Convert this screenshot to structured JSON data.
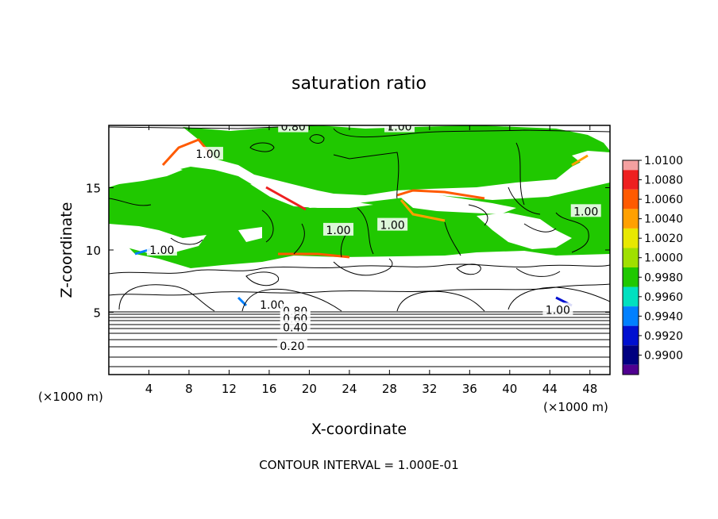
{
  "chart_data": {
    "type": "heatmap",
    "title": "saturation ratio",
    "xlabel": "X-coordinate",
    "ylabel": "Z-coordinate",
    "x_unit_left": "(×1000 m)",
    "x_unit_right": "(×1000 m)",
    "xlim": [
      0,
      50
    ],
    "ylim": [
      0,
      20
    ],
    "x_ticks": [
      4,
      8,
      12,
      16,
      20,
      24,
      28,
      32,
      36,
      40,
      44,
      48
    ],
    "y_ticks": [
      5,
      10,
      15
    ],
    "footer": "CONTOUR INTERVAL = 1.000E-01",
    "colorbar": {
      "levels": [
        "1.0100",
        "1.0080",
        "1.0060",
        "1.0040",
        "1.0020",
        "1.0000",
        "0.9980",
        "0.9960",
        "0.9940",
        "0.9920",
        "0.9900"
      ],
      "colors": [
        "#f4a0a0",
        "#ee2020",
        "#ff5a00",
        "#ffa000",
        "#e8e800",
        "#a0e000",
        "#20c800",
        "#00e0c0",
        "#0080ff",
        "#0010d0",
        "#000080",
        "#500090"
      ]
    },
    "contour_labels": [
      {
        "text": "0.80",
        "x": 18.4,
        "y": 19.9
      },
      {
        "text": "1.00",
        "x": 29.0,
        "y": 19.9
      },
      {
        "text": "1.00",
        "x": 9.9,
        "y": 17.7
      },
      {
        "text": "1.00",
        "x": 5.3,
        "y": 10.0
      },
      {
        "text": "1.00",
        "x": 22.9,
        "y": 11.6
      },
      {
        "text": "1.00",
        "x": 28.3,
        "y": 12.0
      },
      {
        "text": "1.00",
        "x": 47.6,
        "y": 13.1
      },
      {
        "text": "1.00",
        "x": 44.8,
        "y": 5.2
      },
      {
        "text": "1.00",
        "x": 16.3,
        "y": 5.6
      },
      {
        "text": "0.80",
        "x": 18.6,
        "y": 5.1
      },
      {
        "text": "0.60",
        "x": 18.6,
        "y": 4.5
      },
      {
        "text": "0.40",
        "x": 18.6,
        "y": 3.8
      },
      {
        "text": "0.20",
        "x": 18.3,
        "y": 2.3
      }
    ]
  }
}
